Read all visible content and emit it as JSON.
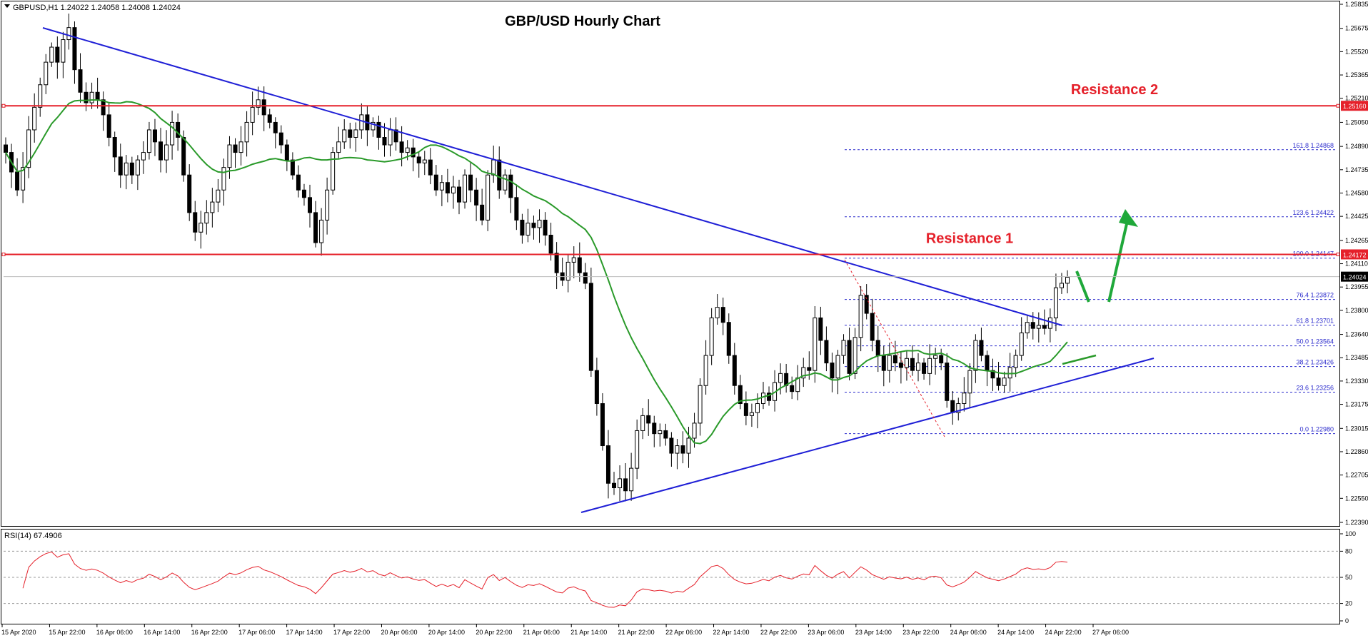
{
  "chart_data": [
    {
      "type": "candlestick",
      "symbol_info": "GBPUSD,H1  1.24022 1.24058 1.24008 1.24024",
      "title": "GBP/USD Hourly Chart",
      "ylim": [
        1.2239,
        1.25835
      ],
      "y_ticks": [
        "1.25835",
        "1.25675",
        "1.25520",
        "1.25365",
        "1.25210",
        "1.25050",
        "1.24890",
        "1.24735",
        "1.24580",
        "1.24425",
        "1.24265",
        "1.24110",
        "1.23955",
        "1.23800",
        "1.23640",
        "1.23485",
        "1.23330",
        "1.23175",
        "1.23015",
        "1.22860",
        "1.22705",
        "1.22550",
        "1.22390"
      ],
      "x_ticks": [
        "15 Apr 2020",
        "15 Apr 22:00",
        "16 Apr 06:00",
        "16 Apr 14:00",
        "16 Apr 22:00",
        "17 Apr 06:00",
        "17 Apr 14:00",
        "17 Apr 22:00",
        "20 Apr 06:00",
        "20 Apr 14:00",
        "20 Apr 22:00",
        "21 Apr 06:00",
        "21 Apr 14:00",
        "21 Apr 22:00",
        "22 Apr 06:00",
        "22 Apr 14:00",
        "22 Apr 22:00",
        "23 Apr 06:00",
        "23 Apr 14:00",
        "23 Apr 22:00",
        "24 Apr 06:00",
        "24 Apr 14:00",
        "24 Apr 22:00",
        "27 Apr 06:00"
      ],
      "current_price": "1.24024",
      "levels": [
        {
          "name": "Resistance 2",
          "price": 1.2516,
          "label": "1.25160"
        },
        {
          "name": "Resistance 1",
          "price": 1.24172,
          "label": "1.24172"
        }
      ],
      "fibonacci": [
        {
          "label": "161.8 1.24868",
          "price": 1.24868
        },
        {
          "label": "123.6 1.24422",
          "price": 1.24422
        },
        {
          "label": "100.0 1.24147",
          "price": 1.24147
        },
        {
          "label": "76.4 1.23872",
          "price": 1.23872
        },
        {
          "label": "61.8 1.23701",
          "price": 1.23701
        },
        {
          "label": "50.0 1.23564",
          "price": 1.23564
        },
        {
          "label": "38.2 1.23426",
          "price": 1.23426
        },
        {
          "label": "23.6 1.23256",
          "price": 1.23256
        },
        {
          "label": "0.0 1.22980",
          "price": 1.2298
        }
      ],
      "closes": [
        1.2485,
        1.2472,
        1.246,
        1.2475,
        1.25,
        1.2515,
        1.253,
        1.2545,
        1.2555,
        1.2545,
        1.256,
        1.2568,
        1.254,
        1.2525,
        1.2518,
        1.2525,
        1.252,
        1.251,
        1.2495,
        1.2482,
        1.247,
        1.2478,
        1.247,
        1.248,
        1.2485,
        1.25,
        1.2492,
        1.248,
        1.249,
        1.2505,
        1.2495,
        1.247,
        1.2445,
        1.2432,
        1.2438,
        1.2445,
        1.2452,
        1.246,
        1.2475,
        1.249,
        1.2485,
        1.2492,
        1.2505,
        1.2515,
        1.252,
        1.251,
        1.2505,
        1.2498,
        1.249,
        1.248,
        1.247,
        1.246,
        1.2455,
        1.2445,
        1.2425,
        1.244,
        1.246,
        1.2485,
        1.2492,
        1.25,
        1.2495,
        1.25,
        1.251,
        1.25,
        1.2505,
        1.2495,
        1.249,
        1.25,
        1.2492,
        1.2485,
        1.2488,
        1.2482,
        1.2478,
        1.248,
        1.247,
        1.246,
        1.2465,
        1.2458,
        1.2462,
        1.2452,
        1.247,
        1.246,
        1.245,
        1.244,
        1.247,
        1.248,
        1.246,
        1.247,
        1.2455,
        1.244,
        1.243,
        1.2438,
        1.2435,
        1.244,
        1.243,
        1.2418,
        1.2405,
        1.24,
        1.2412,
        1.2415,
        1.2405,
        1.2398,
        1.234,
        1.2318,
        1.229,
        1.2265,
        1.2262,
        1.2268,
        1.226,
        1.2275,
        1.23,
        1.231,
        1.2305,
        1.2298,
        1.23,
        1.2295,
        1.2285,
        1.229,
        1.2285,
        1.2295,
        1.2305,
        1.233,
        1.235,
        1.2375,
        1.2382,
        1.2372,
        1.235,
        1.233,
        1.2318,
        1.231,
        1.2312,
        1.2318,
        1.2325,
        1.232,
        1.2332,
        1.2338,
        1.233,
        1.2326,
        1.2335,
        1.2342,
        1.234,
        1.2375,
        1.236,
        1.2345,
        1.2335,
        1.235,
        1.236,
        1.2338,
        1.2362,
        1.239,
        1.2378,
        1.236,
        1.235,
        1.234,
        1.235,
        1.2345,
        1.2342,
        1.2348,
        1.234,
        1.2345,
        1.2338,
        1.2348,
        1.235,
        1.2345,
        1.232,
        1.2312,
        1.2318,
        1.2325,
        1.234,
        1.236,
        1.235,
        1.234,
        1.2335,
        1.233,
        1.2335,
        1.2342,
        1.235,
        1.2365,
        1.2372,
        1.2368,
        1.237,
        1.2368,
        1.2375,
        1.2395,
        1.2398,
        1.2402
      ]
    },
    {
      "type": "line",
      "title": "RSI(14) 67.4906",
      "ylim": [
        0,
        100
      ],
      "y_ticks": [
        "100",
        "80",
        "50",
        "20",
        "0"
      ],
      "levels": [
        80,
        50,
        20
      ],
      "last_value": 67.4906
    }
  ],
  "colors": {
    "bull": "#ffffff",
    "bear": "#000000",
    "candle_outline": "#000000",
    "trendline": "#1f1fd6",
    "ma": "#2a9a2a",
    "resistance": "#e5202a",
    "fib": "#2a2acc",
    "arrow": "#1fa83a",
    "rsi": "#e5202a",
    "current_price_box": "#000000"
  }
}
